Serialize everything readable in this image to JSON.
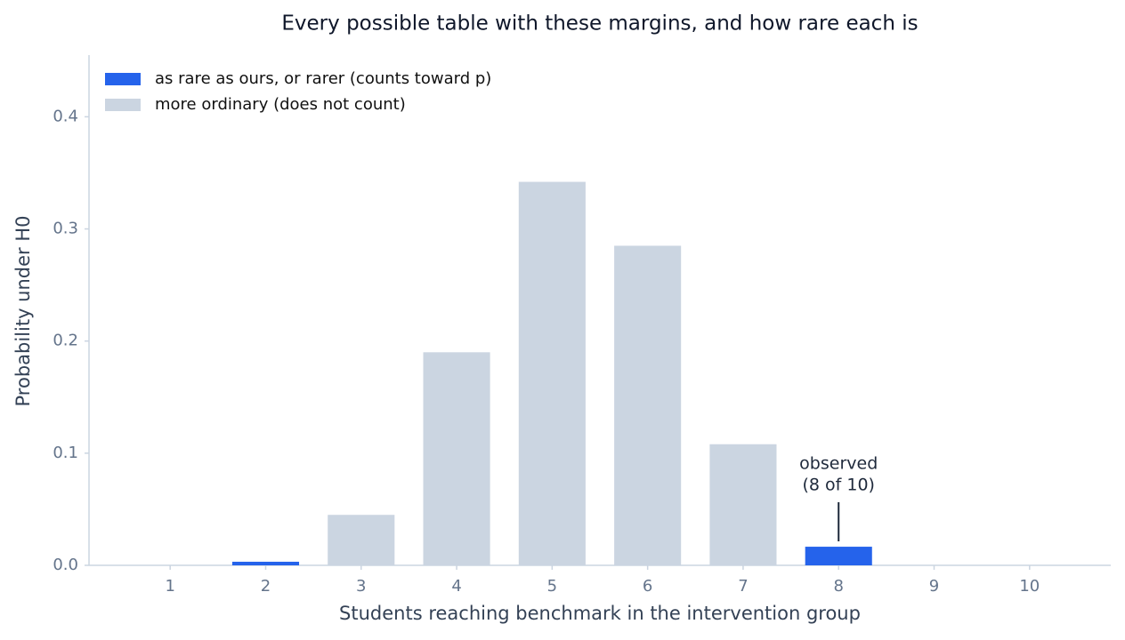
{
  "chart_data": {
    "type": "bar",
    "title": "Every possible table with these margins, and how rare each is",
    "x_label": "Students reaching benchmark in the intervention group",
    "y_label": "Probability under H0",
    "x": [
      1,
      2,
      3,
      4,
      5,
      6,
      7,
      8,
      9,
      10
    ],
    "series": [
      {
        "name": "as rare as ours, or rarer (counts toward p)",
        "color": "#2563eb",
        "values": [
          0,
          0.0032,
          null,
          null,
          null,
          null,
          null,
          0.0166,
          0,
          0
        ]
      },
      {
        "name": "more ordinary (does not count)",
        "color": "#cbd5e1",
        "values": [
          null,
          null,
          0.045,
          0.19,
          0.342,
          0.285,
          0.108,
          null,
          null,
          null
        ]
      }
    ],
    "xlim": [
      0.15,
      10.85
    ],
    "xticks": [
      1,
      2,
      3,
      4,
      5,
      6,
      7,
      8,
      9,
      10
    ],
    "ylim": [
      0,
      0.455
    ],
    "yticks": [
      {
        "value": 0,
        "label": "0.0"
      },
      0.1,
      0.2,
      0.3,
      0.4
    ],
    "grid": false,
    "legend_position": "upper-left",
    "annotation": {
      "lines": [
        "observed",
        "(8 of 10)"
      ],
      "x": 8
    }
  }
}
